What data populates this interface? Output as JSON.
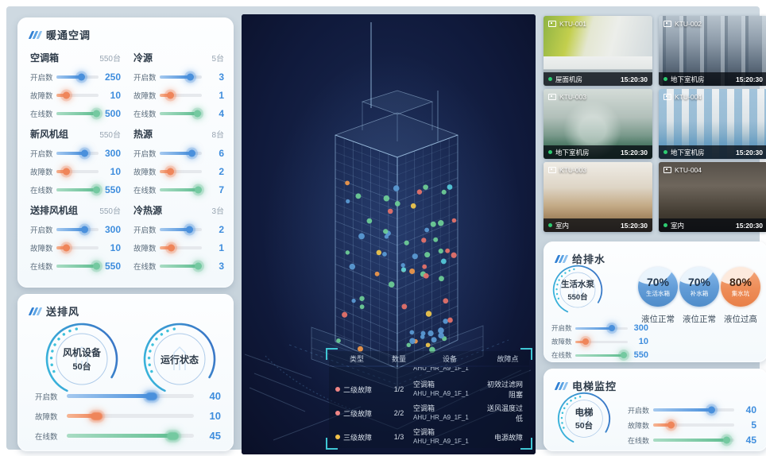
{
  "colors": {
    "blue": "#4a90dc",
    "orange": "#ef855a",
    "green": "#63bf93",
    "value_text": "#3e8ddd",
    "bracket": "#3fc6d4"
  },
  "hvac": {
    "title": "暖通空调",
    "groups": [
      {
        "name": "空调箱",
        "count": "550台",
        "metrics": [
          {
            "label": "开启数",
            "value": "250",
            "pct": 58,
            "color": "blue"
          },
          {
            "label": "故障数",
            "value": "10",
            "pct": 22,
            "color": "orange"
          },
          {
            "label": "在线数",
            "value": "500",
            "pct": 95,
            "color": "green"
          }
        ]
      },
      {
        "name": "冷源",
        "count": "5台",
        "metrics": [
          {
            "label": "开启数",
            "value": "3",
            "pct": 72,
            "color": "blue"
          },
          {
            "label": "故障数",
            "value": "1",
            "pct": 24,
            "color": "orange"
          },
          {
            "label": "在线数",
            "value": "4",
            "pct": 88,
            "color": "green"
          }
        ]
      },
      {
        "name": "新风机组",
        "count": "550台",
        "metrics": [
          {
            "label": "开启数",
            "value": "300",
            "pct": 66,
            "color": "blue"
          },
          {
            "label": "故障数",
            "value": "10",
            "pct": 22,
            "color": "orange"
          },
          {
            "label": "在线数",
            "value": "550",
            "pct": 95,
            "color": "green"
          }
        ]
      },
      {
        "name": "热源",
        "count": "8台",
        "metrics": [
          {
            "label": "开启数",
            "value": "6",
            "pct": 76,
            "color": "blue"
          },
          {
            "label": "故障数",
            "value": "2",
            "pct": 25,
            "color": "orange"
          },
          {
            "label": "在线数",
            "value": "7",
            "pct": 90,
            "color": "green"
          }
        ]
      },
      {
        "name": "送排风机组",
        "count": "550台",
        "metrics": [
          {
            "label": "开启数",
            "value": "300",
            "pct": 66,
            "color": "blue"
          },
          {
            "label": "故障数",
            "value": "10",
            "pct": 22,
            "color": "orange"
          },
          {
            "label": "在线数",
            "value": "550",
            "pct": 95,
            "color": "green"
          }
        ]
      },
      {
        "name": "冷热源",
        "count": "3台",
        "metrics": [
          {
            "label": "开启数",
            "value": "2",
            "pct": 70,
            "color": "blue"
          },
          {
            "label": "故障数",
            "value": "1",
            "pct": 27,
            "color": "orange"
          },
          {
            "label": "在线数",
            "value": "3",
            "pct": 90,
            "color": "green"
          }
        ]
      }
    ]
  },
  "fan": {
    "title": "送排风",
    "gauges": [
      {
        "name": "风机设备",
        "count": "50台"
      },
      {
        "name": "运行状态",
        "count": ""
      }
    ],
    "metrics": [
      {
        "label": "开启数",
        "value": "40",
        "pct": 68,
        "color": "blue"
      },
      {
        "label": "故障数",
        "value": "10",
        "pct": 25,
        "color": "orange"
      },
      {
        "label": "在线数",
        "value": "45",
        "pct": 85,
        "color": "green"
      }
    ]
  },
  "cameras": {
    "items": [
      {
        "id": "KTU-001",
        "location": "屋面机房",
        "time": "15:20:30",
        "scene": "rooftop"
      },
      {
        "id": "KTU-002",
        "location": "地下室机房",
        "time": "15:20:30",
        "scene": "pipes"
      },
      {
        "id": "KTU-003",
        "location": "地下室机房",
        "time": "15:20:30",
        "scene": "machine"
      },
      {
        "id": "KTU-004",
        "location": "地下室机房",
        "time": "15:20:30",
        "scene": "compressors"
      },
      {
        "id": "KTU-003",
        "location": "室内",
        "time": "15:20:30",
        "scene": "office-warm"
      },
      {
        "id": "KTU-004",
        "location": "室内",
        "time": "15:20:30",
        "scene": "office-dark"
      }
    ]
  },
  "water": {
    "title": "给排水",
    "pump": {
      "name": "生活水泵",
      "count": "550台"
    },
    "metrics": [
      {
        "label": "开启数",
        "value": "300",
        "pct": 70,
        "color": "blue"
      },
      {
        "label": "故障数",
        "value": "10",
        "pct": 20,
        "color": "orange"
      },
      {
        "label": "在线数",
        "value": "550",
        "pct": 92,
        "color": "green"
      }
    ],
    "tanks": [
      {
        "percent": "70%",
        "name": "生活水箱",
        "status": "液位正常",
        "color": "blue"
      },
      {
        "percent": "70%",
        "name": "补水箱",
        "status": "液位正常",
        "color": "blue"
      },
      {
        "percent": "80%",
        "name": "集水坑",
        "status": "液位过高",
        "color": "orange"
      }
    ]
  },
  "elevator": {
    "title": "电梯监控",
    "gauge": {
      "name": "电梯",
      "count": "50台"
    },
    "metrics": [
      {
        "label": "开启数",
        "value": "40",
        "pct": 72,
        "color": "blue"
      },
      {
        "label": "故障数",
        "value": "5",
        "pct": 22,
        "color": "orange"
      },
      {
        "label": "在线数",
        "value": "45",
        "pct": 90,
        "color": "green"
      }
    ]
  },
  "center": {
    "table": {
      "headers": [
        "类型",
        "数量",
        "设备",
        "故障点"
      ],
      "partial_top_device": "AHU_HR_A9_1F_1",
      "rows": [
        {
          "severity": "二级故障",
          "severity_color": "#ef8585",
          "count": "1/2",
          "device_type": "空调箱",
          "device_id": "AHU_HR_A9_1F_1",
          "fault": "初效过滤网阻塞"
        },
        {
          "severity": "二级故障",
          "severity_color": "#ef8585",
          "count": "2/2",
          "device_type": "空调箱",
          "device_id": "AHU_HR_A9_1F_1",
          "fault": "送风温度过低"
        },
        {
          "severity": "三级故障",
          "severity_color": "#f3c24a",
          "count": "1/3",
          "device_type": "空调箱",
          "device_id": "AHU_HR_A9_1F_1",
          "fault": "电源故障"
        }
      ]
    },
    "dot_colors": [
      "#5b9bd5",
      "#6fcf97",
      "#6fcf97",
      "#f2c94c",
      "#f2994a",
      "#e8736a",
      "#56ccda",
      "#5b9bd5"
    ]
  }
}
